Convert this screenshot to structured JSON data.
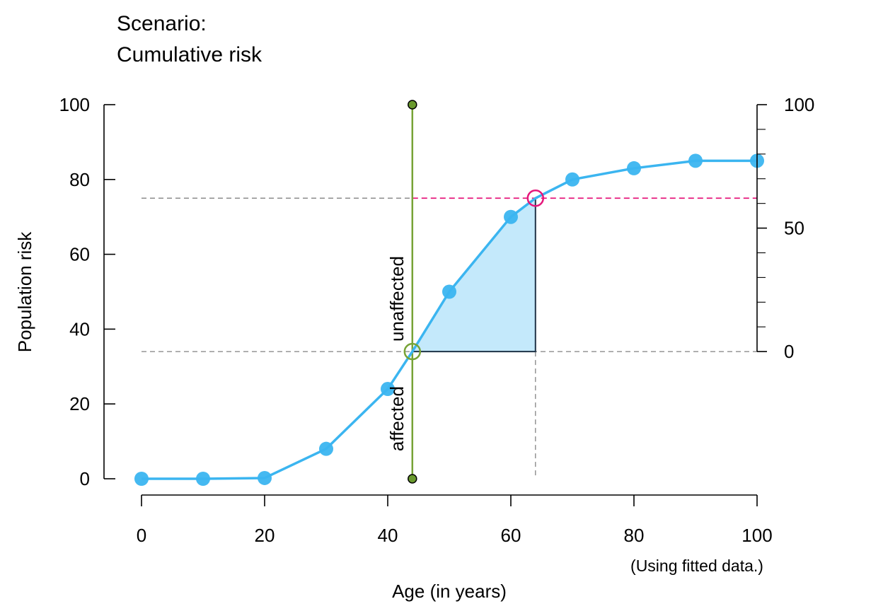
{
  "colors": {
    "curve": "#3BB5F0",
    "fill": "#C4E9FB",
    "vline": "#77A336",
    "dot": "#6A9A2E",
    "pink": "#E5177B",
    "grid": "#8C8C8C",
    "frame": "#1F3347",
    "axis": "#000000"
  },
  "chart_data": {
    "type": "line",
    "title": "Scenario:",
    "subtitle": "Cumulative risk",
    "xlabel": "Age (in years)",
    "ylabel": "Population risk",
    "note": "(Using fitted data.)",
    "xlim": [
      0,
      100
    ],
    "ylim": [
      0,
      100
    ],
    "x_ticks": [
      0,
      20,
      40,
      60,
      80,
      100
    ],
    "y_ticks": [
      0,
      20,
      40,
      60,
      80,
      100
    ],
    "series": [
      {
        "x": [
          0,
          10,
          20,
          30,
          40,
          44,
          50,
          60,
          64,
          70,
          80,
          90,
          100
        ],
        "y": [
          0,
          0,
          0.2,
          8,
          24,
          34,
          50,
          70,
          75,
          80,
          83,
          85,
          85
        ],
        "marker_x": [
          0,
          10,
          20,
          30,
          40,
          50,
          60,
          70,
          80,
          90,
          100
        ]
      }
    ],
    "scenario": {
      "age_start": 44,
      "risk_start": 34,
      "age_end": 64,
      "risk_end": 75,
      "label_upper": "unaffected",
      "label_lower": "affected"
    },
    "right_axis": {
      "range": [
        0,
        100
      ],
      "labeled_ticks": [
        0,
        50,
        100
      ],
      "minor_step": 10
    }
  }
}
